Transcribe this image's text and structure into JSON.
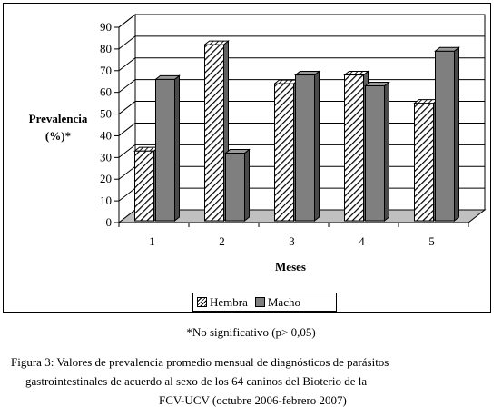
{
  "chart_data": {
    "type": "bar",
    "categories": [
      "1",
      "2",
      "3",
      "4",
      "5"
    ],
    "series": [
      {
        "name": "Hembra",
        "values": [
          33,
          82,
          64,
          68,
          55
        ],
        "color": "#ffffff",
        "pattern": "diagonal-hatch"
      },
      {
        "name": "Macho",
        "values": [
          66,
          32,
          68,
          63,
          79
        ],
        "color": "#808080"
      }
    ],
    "ylabel_line1": "Prevalencia",
    "ylabel_line2": "(%)*",
    "xlabel": "Meses",
    "ylim": [
      0,
      90
    ],
    "yticks": [
      "0",
      "10",
      "20",
      "30",
      "40",
      "50",
      "60",
      "70",
      "80",
      "90"
    ],
    "grid": true,
    "legend_position": "bottom"
  },
  "note": "*No significativo (p> 0,05)",
  "caption": {
    "line1": "Figura 3: Valores de prevalencia promedio mensual de  diagnósticos de parásitos",
    "line2": "gastrointestinales de acuerdo  al sexo de los 64 caninos del Bioterio de la",
    "line3": "FCV-UCV  (octubre 2006-febrero 2007)"
  }
}
